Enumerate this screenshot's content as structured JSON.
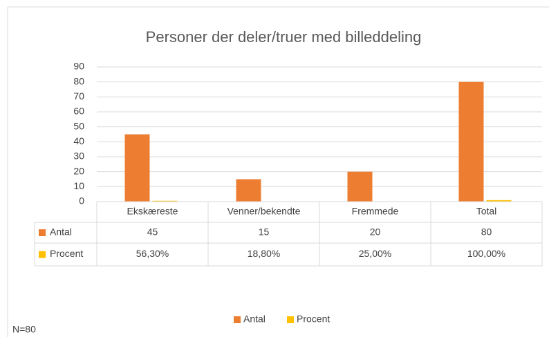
{
  "chart_data": {
    "type": "bar",
    "title": "Personer der deler/truer med billeddeling",
    "categories": [
      "Ekskæreste",
      "Venner/bekendte",
      "Fremmede",
      "Total"
    ],
    "series": [
      {
        "name": "Antal",
        "color": "#ed7d31",
        "values": [
          45,
          15,
          20,
          80
        ]
      },
      {
        "name": "Procent",
        "color": "#ffc000",
        "values": [
          0.563,
          0.188,
          0.25,
          1
        ],
        "value_labels": [
          "56,30%",
          "18,80%",
          "25,00%",
          "100,00%"
        ]
      }
    ],
    "ylim": [
      0,
      90
    ],
    "yticks": [
      0,
      10,
      20,
      30,
      40,
      50,
      60,
      70,
      80,
      90
    ],
    "grid": true,
    "legend": "bottom",
    "annotation": "N=80"
  }
}
